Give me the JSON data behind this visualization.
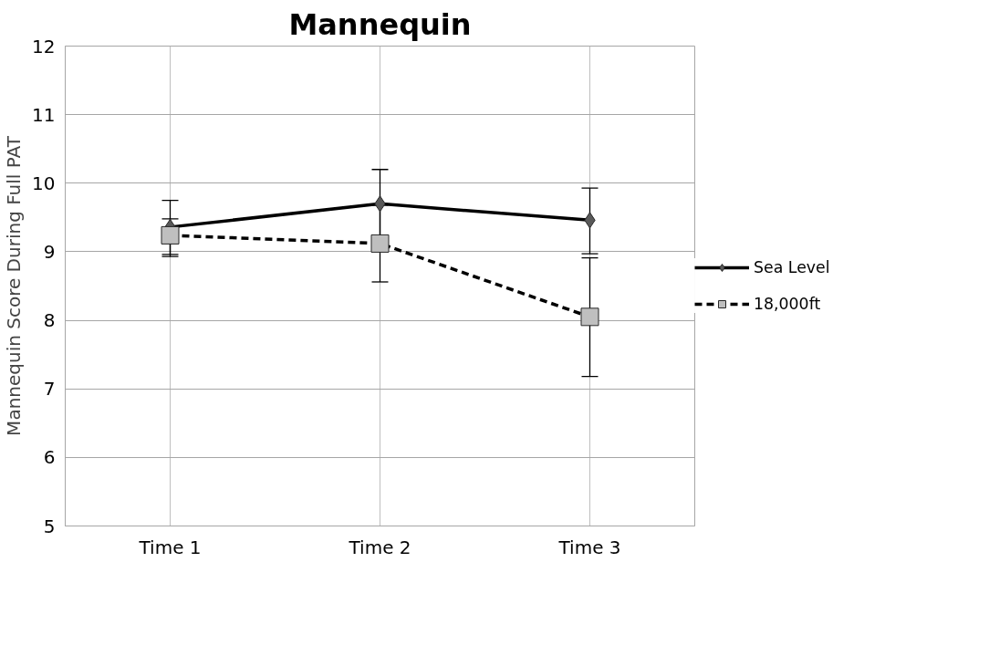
{
  "chart_data": {
    "type": "line",
    "title": "Mannequin",
    "ylabel": "Mannequin Score During Full PAT",
    "categories": [
      "Time 1",
      "Time 2",
      "Time 3"
    ],
    "series": [
      {
        "name": "Sea Level",
        "color": "#000000",
        "marker": "diamond",
        "colors": [
          "#595959",
          "#595959",
          "#595959"
        ],
        "line_style": "solid",
        "values": [
          9.36,
          9.7,
          9.46
        ],
        "errors": [
          [
            8.96,
            9.75
          ],
          [
            9.2,
            10.2
          ],
          [
            8.97,
            9.93
          ]
        ]
      },
      {
        "name": "18,000ft",
        "color": "#000000",
        "marker": "square",
        "colors": [
          "#bfbfbf",
          "#bfbfbf",
          "#bfbfbf"
        ],
        "line_style": "dashed",
        "values": [
          9.24,
          9.12,
          8.05
        ],
        "errors": [
          [
            8.93,
            9.48
          ],
          [
            8.56,
            9.68
          ],
          [
            7.18,
            8.91
          ]
        ]
      }
    ],
    "ylim": [
      5,
      12
    ],
    "yticks": [
      5,
      6,
      7,
      8,
      9,
      10,
      11,
      12
    ],
    "grid": true,
    "legend": "right"
  }
}
